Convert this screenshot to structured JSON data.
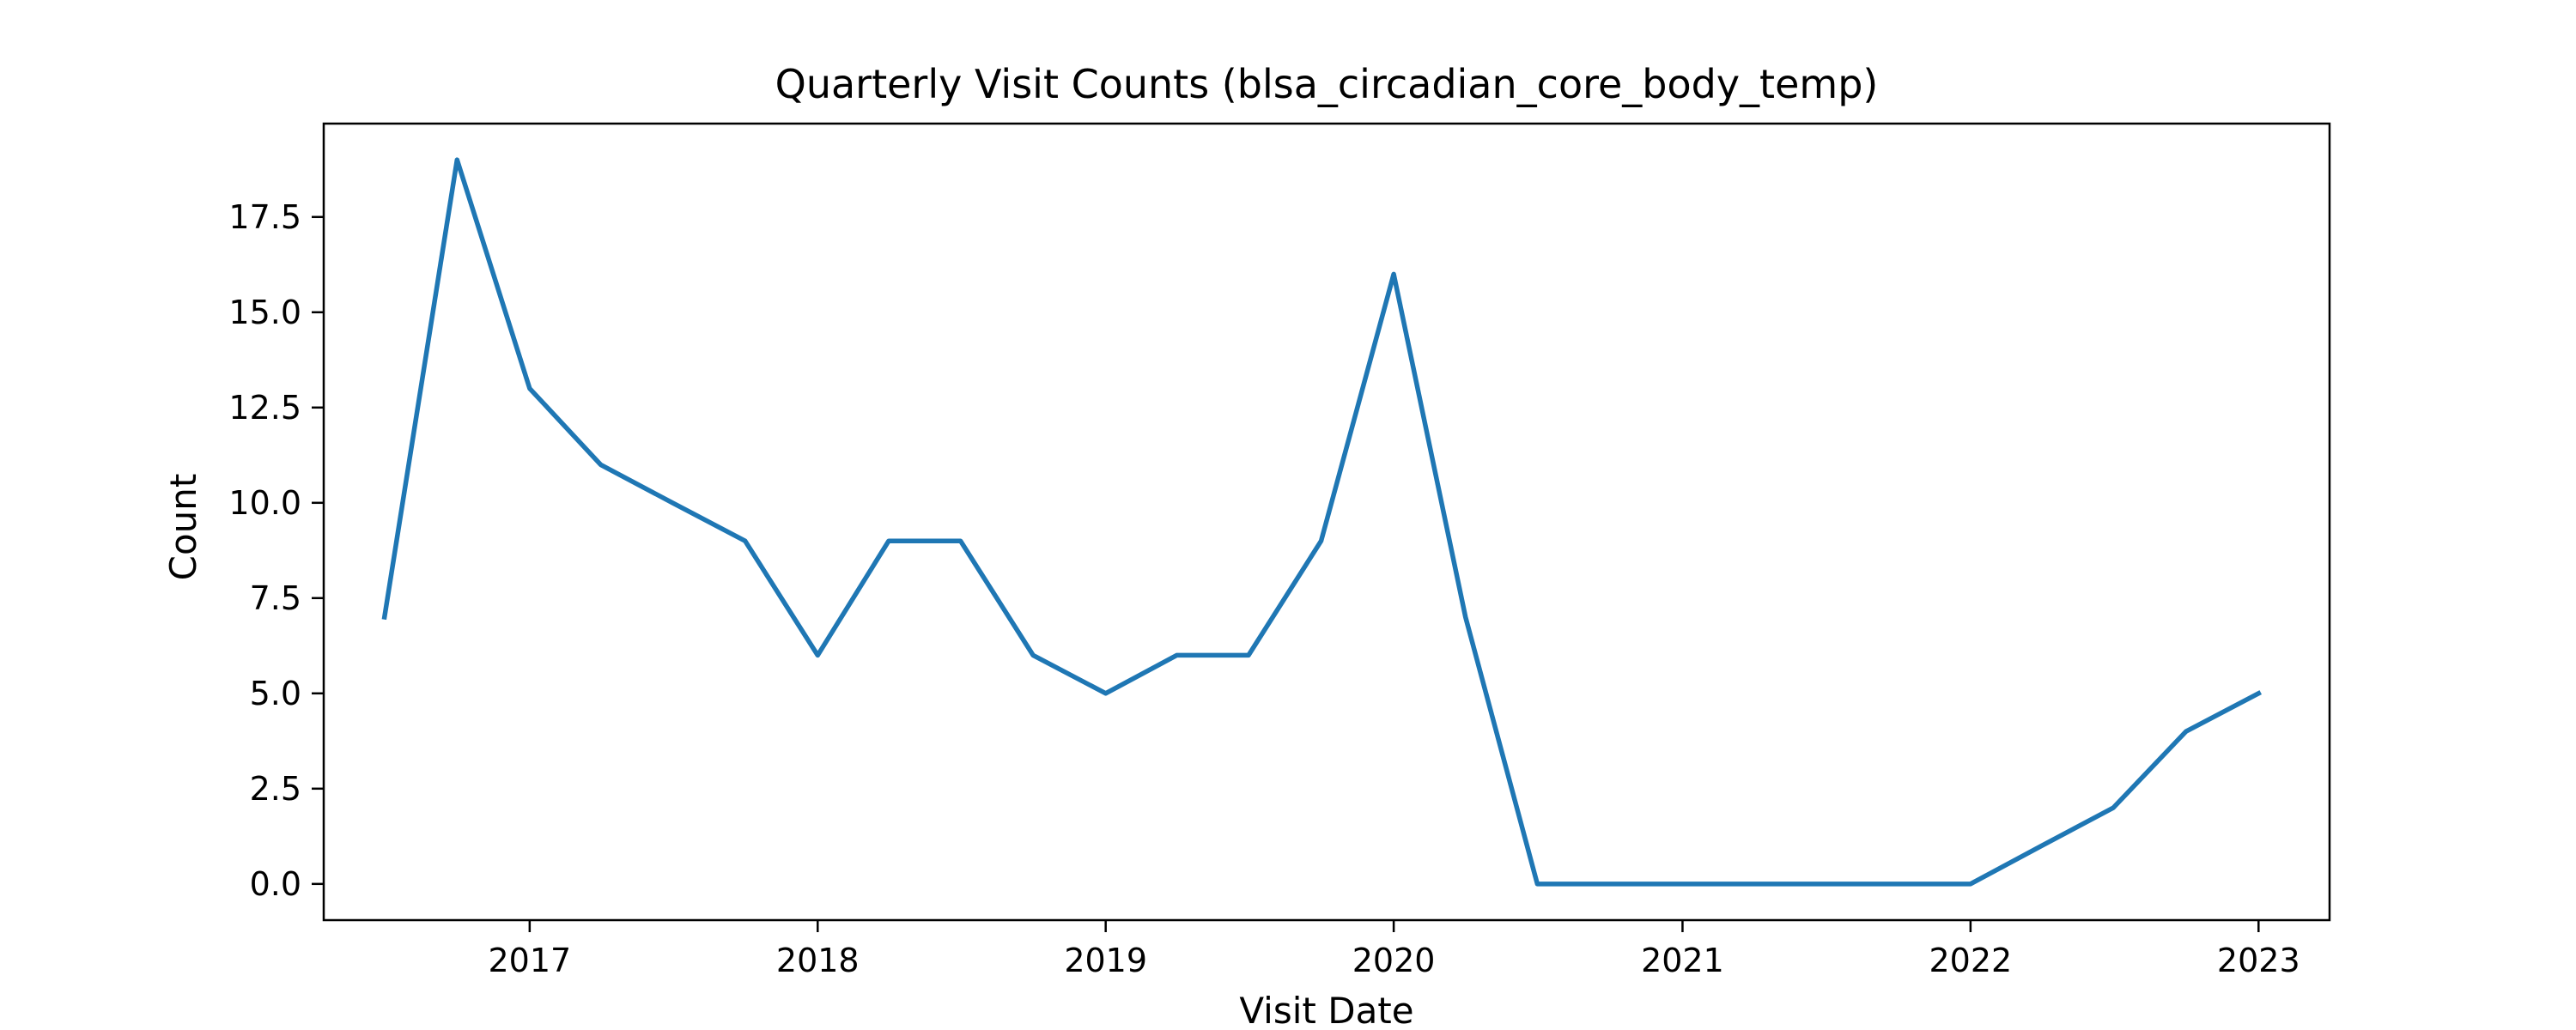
{
  "chart_data": {
    "type": "line",
    "title": "Quarterly Visit Counts (blsa_circadian_core_body_temp)",
    "xlabel": "Visit Date",
    "ylabel": "Count",
    "x_tick_labels": [
      "2017",
      "2018",
      "2019",
      "2020",
      "2021",
      "2022",
      "2023"
    ],
    "y_tick_labels": [
      "0.0",
      "2.5",
      "5.0",
      "7.5",
      "10.0",
      "12.5",
      "15.0",
      "17.5"
    ],
    "x_ticks": [
      "2017-01-01",
      "2018-01-01",
      "2019-01-01",
      "2020-01-01",
      "2021-01-01",
      "2022-01-01",
      "2023-01-01"
    ],
    "y_ticks": [
      0,
      2.5,
      5,
      7.5,
      10,
      12.5,
      15,
      17.5
    ],
    "xlim": [
      "2016-04-15",
      "2023-04-01"
    ],
    "ylim": [
      -0.95,
      19.95
    ],
    "grid": false,
    "series": [
      {
        "color": "#1f77b4",
        "x": [
          "2016-07-01",
          "2016-10-01",
          "2017-01-01",
          "2017-04-01",
          "2017-07-01",
          "2017-10-01",
          "2018-01-01",
          "2018-04-01",
          "2018-07-01",
          "2018-10-01",
          "2019-01-01",
          "2019-04-01",
          "2019-07-01",
          "2019-10-01",
          "2020-01-01",
          "2020-04-01",
          "2020-07-01",
          "2020-10-01",
          "2021-01-01",
          "2021-04-01",
          "2021-07-01",
          "2021-10-01",
          "2022-01-01",
          "2022-04-01",
          "2022-07-01",
          "2022-10-01",
          "2023-01-01"
        ],
        "values": [
          7,
          19,
          13,
          11,
          10,
          9,
          6,
          9,
          9,
          6,
          5,
          6,
          6,
          9,
          16,
          7,
          0,
          0,
          0,
          0,
          0,
          0,
          0,
          1,
          2,
          4,
          5
        ]
      }
    ]
  }
}
